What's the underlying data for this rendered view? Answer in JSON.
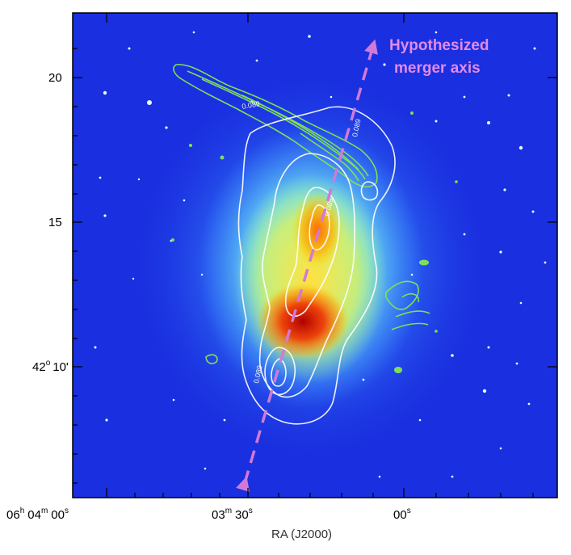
{
  "axes": {
    "x_title": "RA (J2000)",
    "x_ticks": [
      {
        "h": "06",
        "hu": "h",
        "m": "04",
        "mu": "m",
        "s": "00",
        "su": "s"
      },
      {
        "m": "03",
        "mu": "m",
        "s": "30",
        "su": "s"
      },
      {
        "s": "00",
        "su": "s"
      }
    ],
    "y_ticks": [
      {
        "label": "20"
      },
      {
        "label": "15"
      },
      {
        "deg": "42",
        "degu": "o",
        "min": "10'"
      }
    ]
  },
  "annotation": {
    "line1": "Hypothesized",
    "line2": "merger axis",
    "color": "#e48ae8"
  },
  "contour_labels": [
    "0.089",
    "0.089",
    "0.089",
    "0.089"
  ],
  "colors": {
    "background": "#1a2fe0",
    "radio_contours": "#7ee05a",
    "xray_contours": "#ffffff",
    "arrow": "#d07ad8"
  }
}
